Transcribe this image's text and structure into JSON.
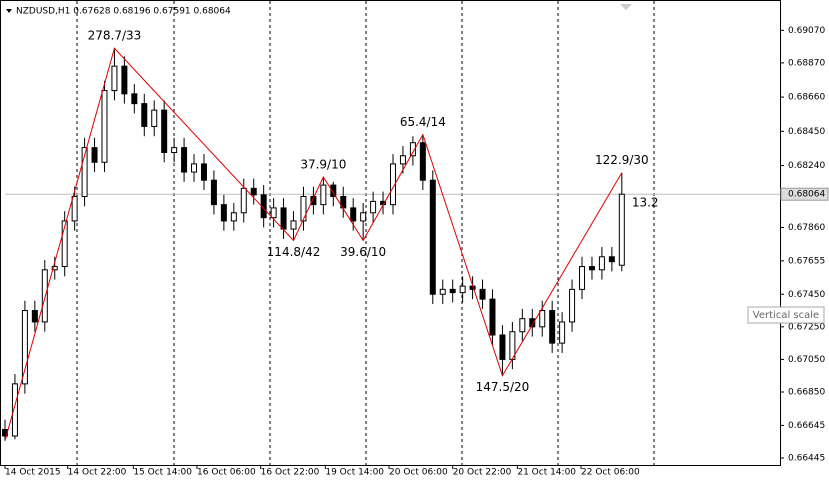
{
  "chart_data": {
    "type": "candlestick",
    "title": "NZDUSD,H1  0.67628 0.68196 0.67591 0.68064",
    "candles": [
      [
        0.6662,
        0.6668,
        0.6655,
        0.6658
      ],
      [
        0.6658,
        0.6696,
        0.6656,
        0.669
      ],
      [
        0.669,
        0.6741,
        0.6684,
        0.6735
      ],
      [
        0.6735,
        0.6741,
        0.6722,
        0.6728
      ],
      [
        0.6728,
        0.6766,
        0.6722,
        0.676
      ],
      [
        0.676,
        0.6768,
        0.6754,
        0.6762
      ],
      [
        0.6762,
        0.6796,
        0.6756,
        0.679
      ],
      [
        0.679,
        0.6811,
        0.6784,
        0.6805
      ],
      [
        0.6805,
        0.6841,
        0.6799,
        0.6835
      ],
      [
        0.6835,
        0.6841,
        0.682,
        0.6826
      ],
      [
        0.6826,
        0.6876,
        0.682,
        0.687
      ],
      [
        0.687,
        0.6896,
        0.6864,
        0.6885
      ],
      [
        0.6885,
        0.6891,
        0.6862,
        0.6868
      ],
      [
        0.6868,
        0.6874,
        0.6856,
        0.6862
      ],
      [
        0.6862,
        0.6868,
        0.6842,
        0.6848
      ],
      [
        0.6848,
        0.6864,
        0.6842,
        0.6858
      ],
      [
        0.6858,
        0.6864,
        0.6826,
        0.6832
      ],
      [
        0.6832,
        0.6841,
        0.6826,
        0.6835
      ],
      [
        0.6835,
        0.6841,
        0.6814,
        0.682
      ],
      [
        0.682,
        0.6831,
        0.6814,
        0.6825
      ],
      [
        0.6825,
        0.6831,
        0.6809,
        0.6815
      ],
      [
        0.6815,
        0.6821,
        0.6794,
        0.68
      ],
      [
        0.68,
        0.6806,
        0.6784,
        0.679
      ],
      [
        0.679,
        0.6801,
        0.6784,
        0.6795
      ],
      [
        0.6795,
        0.6816,
        0.6789,
        0.681
      ],
      [
        0.681,
        0.6816,
        0.68,
        0.6806
      ],
      [
        0.6806,
        0.6812,
        0.6786,
        0.6792
      ],
      [
        0.6792,
        0.6804,
        0.6786,
        0.6798
      ],
      [
        0.6798,
        0.6804,
        0.6779,
        0.6785
      ],
      [
        0.6785,
        0.6796,
        0.6778,
        0.679
      ],
      [
        0.679,
        0.6811,
        0.6784,
        0.6805
      ],
      [
        0.6805,
        0.6811,
        0.6794,
        0.68
      ],
      [
        0.68,
        0.6817,
        0.6794,
        0.6812
      ],
      [
        0.6812,
        0.6814,
        0.6799,
        0.6805
      ],
      [
        0.6805,
        0.6811,
        0.6792,
        0.6798
      ],
      [
        0.6798,
        0.6804,
        0.6784,
        0.679
      ],
      [
        0.679,
        0.6801,
        0.6778,
        0.6795
      ],
      [
        0.6795,
        0.6808,
        0.6789,
        0.6802
      ],
      [
        0.6802,
        0.6808,
        0.6794,
        0.68
      ],
      [
        0.68,
        0.6831,
        0.6794,
        0.6825
      ],
      [
        0.6825,
        0.6836,
        0.6819,
        0.683
      ],
      [
        0.683,
        0.6842,
        0.6824,
        0.6838
      ],
      [
        0.6838,
        0.6843,
        0.6809,
        0.6815
      ],
      [
        0.6815,
        0.6821,
        0.6739,
        0.6745
      ],
      [
        0.6745,
        0.6754,
        0.6739,
        0.6748
      ],
      [
        0.6748,
        0.6754,
        0.674,
        0.6746
      ],
      [
        0.6746,
        0.6756,
        0.674,
        0.675
      ],
      [
        0.675,
        0.6756,
        0.6742,
        0.6748
      ],
      [
        0.6748,
        0.6754,
        0.6736,
        0.6742
      ],
      [
        0.6742,
        0.6748,
        0.6714,
        0.672
      ],
      [
        0.672,
        0.6726,
        0.6695,
        0.6705
      ],
      [
        0.6705,
        0.6728,
        0.6699,
        0.6722
      ],
      [
        0.6722,
        0.6736,
        0.6716,
        0.673
      ],
      [
        0.673,
        0.6736,
        0.6719,
        0.6725
      ],
      [
        0.6725,
        0.6741,
        0.6719,
        0.6735
      ],
      [
        0.6735,
        0.6741,
        0.6709,
        0.6715
      ],
      [
        0.6715,
        0.6734,
        0.6709,
        0.6728
      ],
      [
        0.6728,
        0.6754,
        0.6722,
        0.6748
      ],
      [
        0.6748,
        0.6768,
        0.6742,
        0.6762
      ],
      [
        0.6762,
        0.6768,
        0.6754,
        0.676
      ],
      [
        0.676,
        0.6774,
        0.6754,
        0.6768
      ],
      [
        0.6768,
        0.6774,
        0.6759,
        0.6765
      ],
      [
        0.67628,
        0.68196,
        0.67591,
        0.68064
      ]
    ],
    "zigzag": {
      "color": "#e00000",
      "points": [
        {
          "x": 0,
          "y": 0.6655
        },
        {
          "x": 11,
          "y": 0.6896,
          "label": "278.7/33"
        },
        {
          "x": 29,
          "y": 0.6778,
          "label": "114.8/42"
        },
        {
          "x": 32,
          "y": 0.6817,
          "label": "37.9/10"
        },
        {
          "x": 36,
          "y": 0.6778,
          "label": "39.6/10"
        },
        {
          "x": 42,
          "y": 0.6843,
          "label": "65.4/14"
        },
        {
          "x": 50,
          "y": 0.6695,
          "label": "147.5/20"
        },
        {
          "x": 62,
          "y": 0.68196,
          "label": "122.9/30"
        }
      ]
    },
    "annotation": "13.2",
    "current_price": 0.68064,
    "tooltip": "Vertical scale",
    "xlim": [
      0,
      77.9
    ],
    "xticks": [
      {
        "value": 0,
        "label": "14 Oct 2015"
      },
      {
        "value": 6.3,
        "label": "14 Oct 22:00"
      },
      {
        "value": 12.9,
        "label": "15 Oct 14:00"
      },
      {
        "value": 19.3,
        "label": "16 Oct 06:00"
      },
      {
        "value": 25.7,
        "label": "16 Oct 22:00"
      },
      {
        "value": 32.2,
        "label": "19 Oct 14:00"
      },
      {
        "value": 38.6,
        "label": "20 Oct 06:00"
      },
      {
        "value": 45.0,
        "label": "20 Oct 22:00"
      },
      {
        "value": 51.5,
        "label": "21 Oct 14:00"
      },
      {
        "value": 57.9,
        "label": "22 Oct 06:00"
      }
    ],
    "ylim": [
      0.66402,
      0.69256
    ],
    "yticks": [
      {
        "value": 0.6907,
        "label": "0.69070"
      },
      {
        "value": 0.6887,
        "label": "0.68870"
      },
      {
        "value": 0.6866,
        "label": "0.68660"
      },
      {
        "value": 0.6845,
        "label": "0.68450"
      },
      {
        "value": 0.6824,
        "label": "0.68240"
      },
      {
        "value": 0.6786,
        "label": "0.67860"
      },
      0.67655,
      {
        "value": 0.6745,
        "label": "0.67450"
      },
      {
        "value": 0.6725,
        "label": "0.67250"
      },
      {
        "value": 0.6705,
        "label": "0.67050"
      },
      {
        "value": 0.6685,
        "label": "0.66850"
      },
      0.66645,
      0.66445
    ]
  }
}
